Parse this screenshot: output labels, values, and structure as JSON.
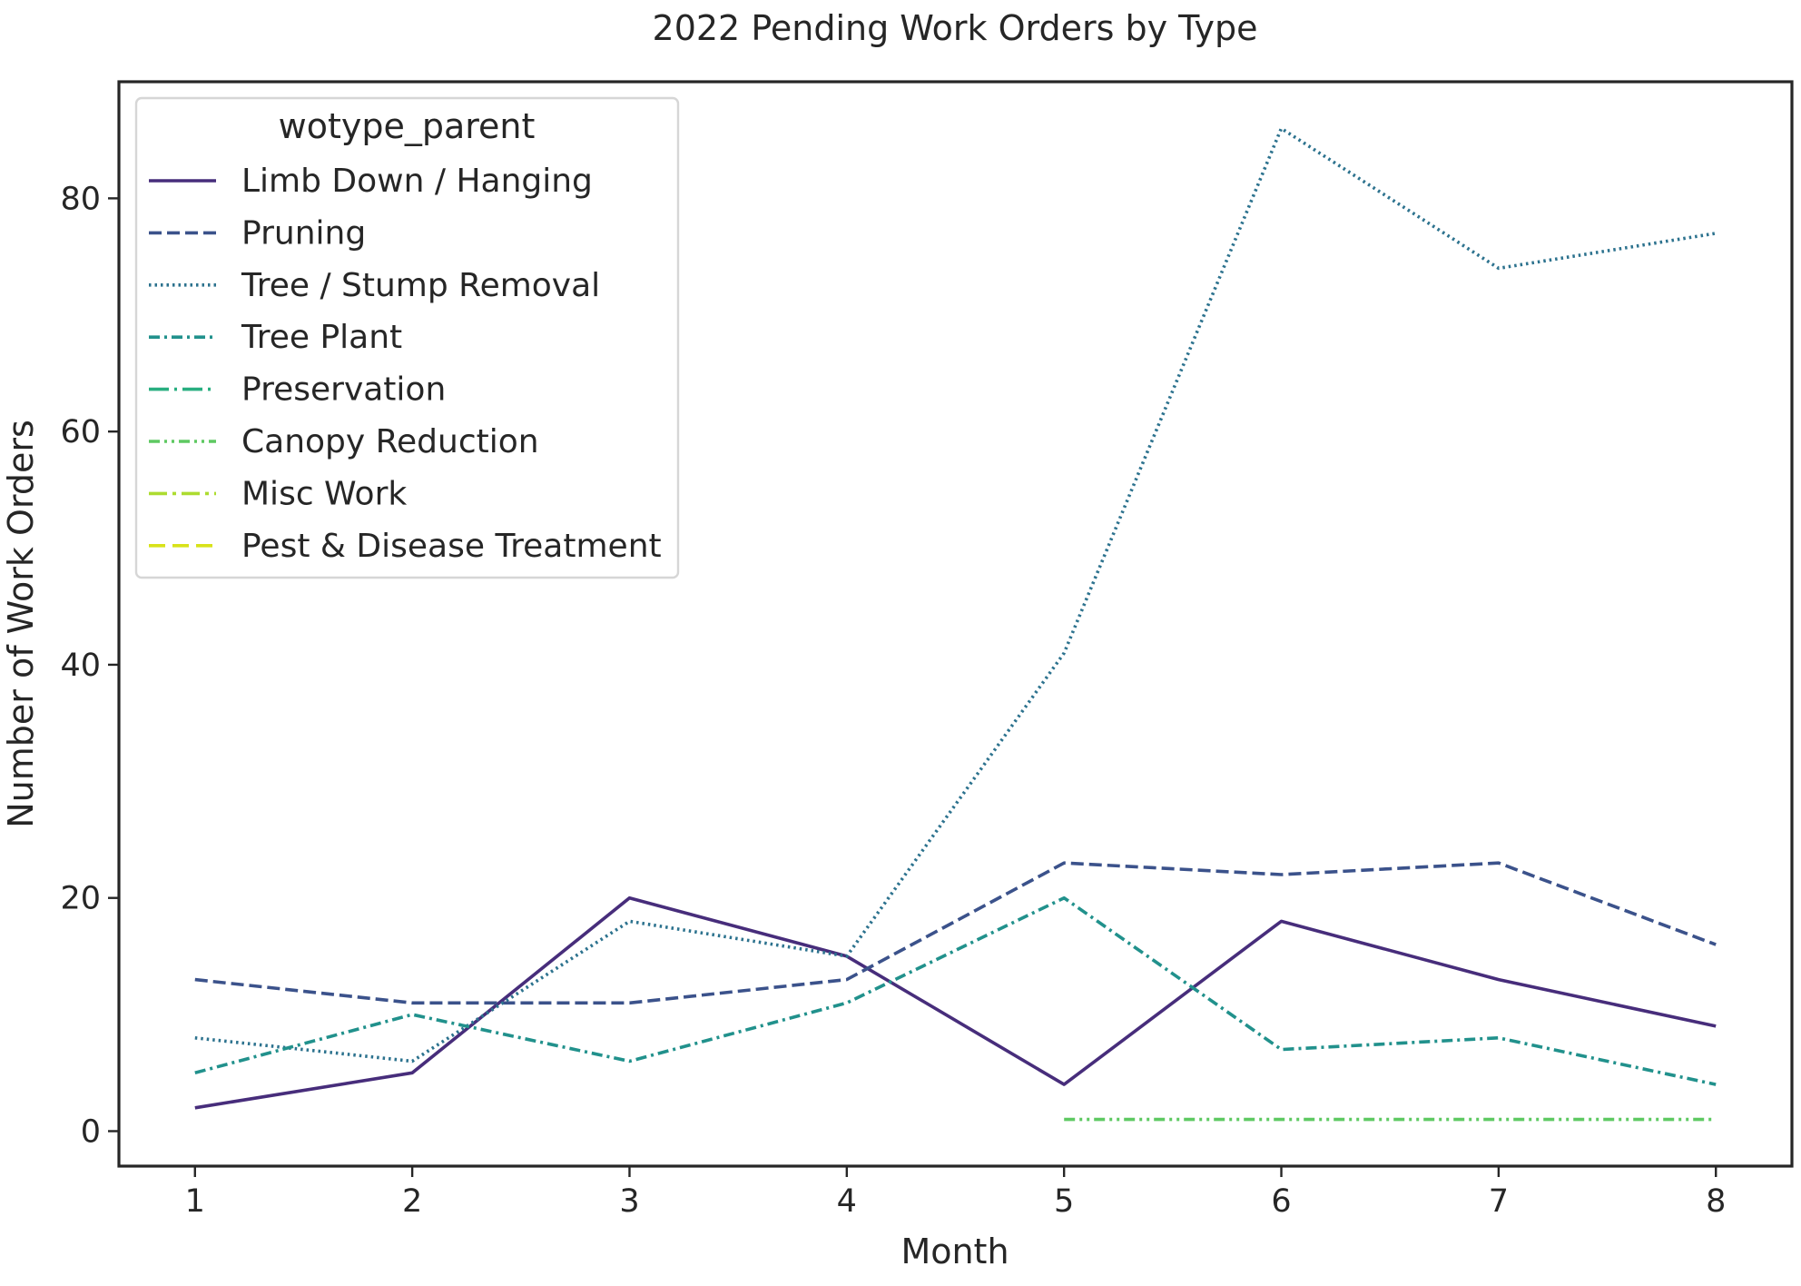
{
  "chart_data": {
    "type": "line",
    "title": "2022 Pending Work Orders by Type",
    "xlabel": "Month",
    "ylabel": "Number of Work Orders",
    "xlim": [
      0.65,
      8.35
    ],
    "ylim": [
      -3,
      90
    ],
    "xticks": [
      1,
      2,
      3,
      4,
      5,
      6,
      7,
      8
    ],
    "yticks": [
      0,
      20,
      40,
      60,
      80
    ],
    "grid": false,
    "legend": {
      "title": "wotype_parent",
      "placement": "top-left"
    },
    "series": [
      {
        "name": "Limb Down / Hanging",
        "color": "#472d7b",
        "dash": "solid",
        "x": [
          1,
          2,
          3,
          4,
          5,
          6,
          7,
          8
        ],
        "y": [
          2,
          5,
          20,
          15,
          4,
          18,
          13,
          9
        ]
      },
      {
        "name": "Pruning",
        "color": "#3b528b",
        "dash": "dashed",
        "x": [
          1,
          2,
          3,
          4,
          5,
          6,
          7,
          8
        ],
        "y": [
          13,
          11,
          11,
          13,
          23,
          22,
          23,
          16
        ]
      },
      {
        "name": "Tree / Stump Removal",
        "color": "#2c728e",
        "dash": "dotted",
        "x": [
          1,
          2,
          3,
          4,
          5,
          6,
          7,
          8
        ],
        "y": [
          8,
          6,
          18,
          15,
          41,
          86,
          74,
          77
        ]
      },
      {
        "name": "Tree Plant",
        "color": "#21918c",
        "dash": "dashdot",
        "x": [
          1,
          2,
          3,
          4,
          5,
          6,
          7,
          8
        ],
        "y": [
          5,
          10,
          6,
          11,
          20,
          7,
          8,
          4
        ]
      },
      {
        "name": "Preservation",
        "color": "#28ae80",
        "dash": "longdashdot",
        "x": [],
        "y": []
      },
      {
        "name": "Canopy Reduction",
        "color": "#5ec962",
        "dash": "dashdotdot",
        "x": [
          5,
          6,
          7,
          8
        ],
        "y": [
          1,
          1,
          1,
          1
        ]
      },
      {
        "name": "Misc Work",
        "color": "#addc30",
        "dash": "longdashdot2",
        "x": [],
        "y": []
      },
      {
        "name": "Pest & Disease Treatment",
        "color": "#d8e219",
        "dash": "longdash",
        "x": [],
        "y": []
      }
    ]
  }
}
